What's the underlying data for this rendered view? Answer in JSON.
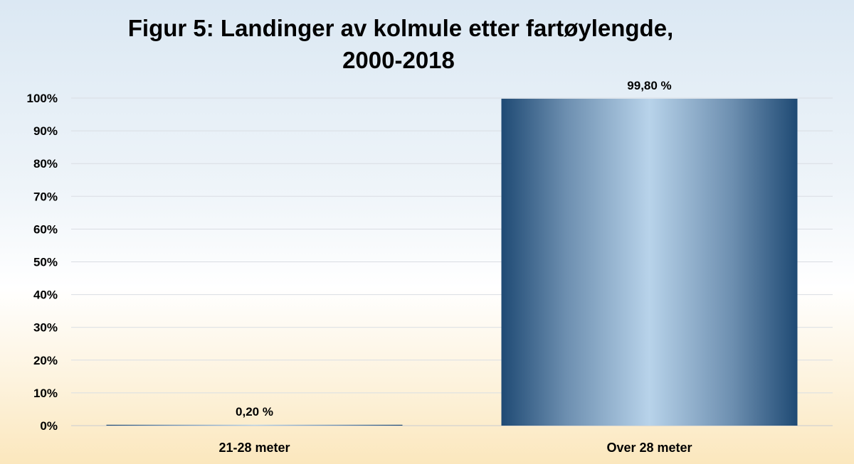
{
  "chart_data": {
    "type": "bar",
    "title_lines": [
      "Figur 5: Landinger av kolmule etter fartøylengde,",
      "2000-2018"
    ],
    "categories": [
      "21-28 meter",
      "Over 28 meter"
    ],
    "values": [
      0.2,
      99.8
    ],
    "data_labels": [
      "0,20 %",
      "99,80 %"
    ],
    "xlabel": "",
    "ylabel": "",
    "ylim": [
      0,
      100
    ],
    "y_ticks": [
      0,
      10,
      20,
      30,
      40,
      50,
      60,
      70,
      80,
      90,
      100
    ],
    "y_tick_labels": [
      "0%",
      "10%",
      "20%",
      "30%",
      "40%",
      "50%",
      "60%",
      "70%",
      "80%",
      "90%",
      "100%"
    ],
    "grid": true,
    "legend": "none",
    "colors": {
      "bar_dark": "#1f4a74",
      "bar_light": "#b8d3ea",
      "grid": "#d9dde3"
    }
  }
}
